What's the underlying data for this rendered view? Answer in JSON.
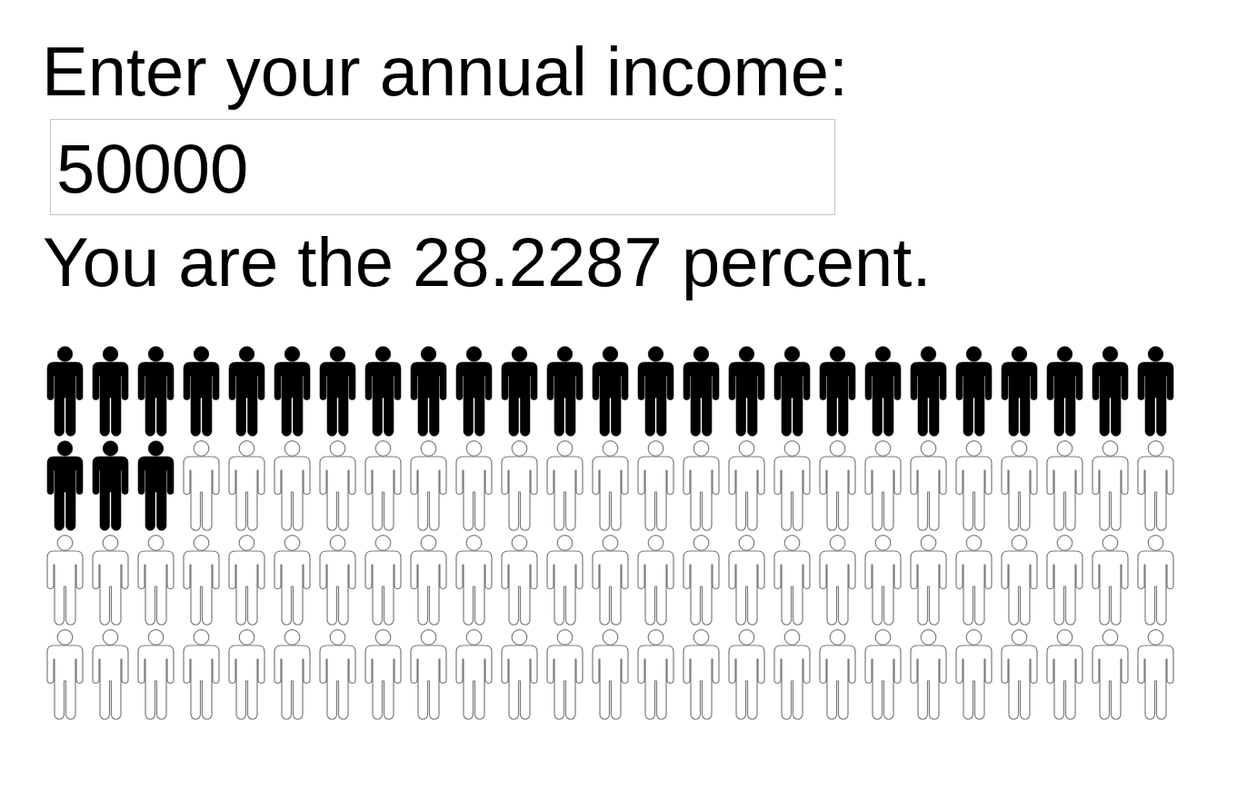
{
  "chart_data": {
    "type": "other",
    "title": "Enter your annual income:",
    "annotations": [
      "50000"
    ],
    "values": [
      28.2287
    ],
    "value_labels": [
      "You are the 28.2287 percent."
    ],
    "color": "#000000"
  }
}
